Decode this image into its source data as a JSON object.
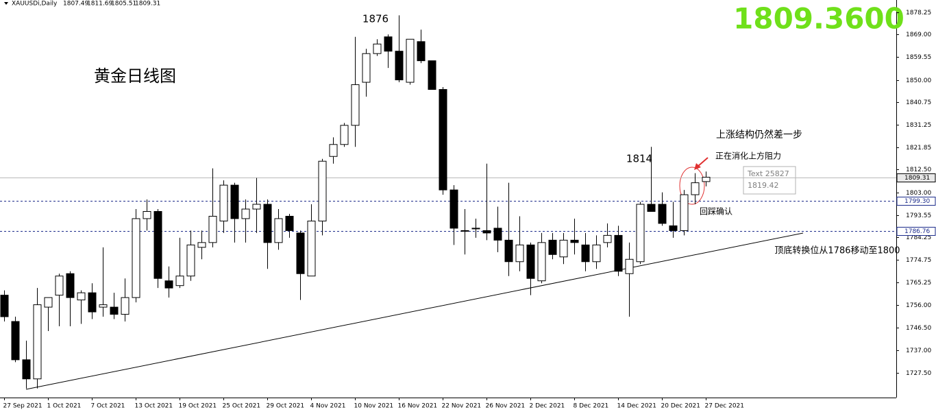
{
  "chart_data": {
    "type": "candlestick",
    "header": {
      "symbol": "XAUUSDi,Daily"
    },
    "price_display": "1809.3600",
    "annotations": [
      "1876",
      "黄金日线图",
      "1814",
      "上涨结构仍然差一步",
      "正在消化上方阻力",
      "回踩确认",
      "顶底转换位从1786移动至1800"
    ],
    "tooltip": [
      "Text 25827",
      "1819.42"
    ],
    "up_color": "#ffffff",
    "down_color": "#000000",
    "categories": [
      "27 Sep 2021",
      null,
      null,
      null,
      "1 Oct 2021",
      null,
      null,
      null,
      "7 Oct 2021",
      null,
      null,
      null,
      "13 Oct 2021",
      null,
      null,
      null,
      "19 Oct 2021",
      null,
      null,
      null,
      "25 Oct 2021",
      null,
      null,
      null,
      "29 Oct 2021",
      null,
      null,
      null,
      "4 Nov 2021",
      null,
      null,
      null,
      "10 Nov 2021",
      null,
      null,
      null,
      "16 Nov 2021",
      null,
      null,
      null,
      "22 Nov 2021",
      null,
      null,
      null,
      "26 Nov 2021",
      null,
      null,
      null,
      "2 Dec 2021",
      null,
      null,
      null,
      "8 Dec 2021",
      null,
      null,
      null,
      "14 Dec 2021",
      null,
      null,
      null,
      "20 Dec 2021",
      null,
      null,
      null,
      "27 Dec 2021"
    ],
    "open": [
      1760,
      1749,
      1733,
      1725,
      1755,
      1760,
      1769,
      1758,
      1761,
      1755,
      1755,
      1752,
      1759,
      1792,
      1795,
      1766,
      1764,
      1768,
      1780,
      1782,
      1791,
      1806,
      1792,
      1796,
      1798,
      1782,
      1793,
      1786,
      1768,
      1791,
      1818,
      1823,
      1831,
      1849,
      1861,
      1868,
      1862,
      1849,
      1866,
      1858,
      1846,
      1804,
      1787,
      1788,
      1787,
      1788,
      1783,
      1774,
      1781,
      1766,
      1783,
      1776,
      1783,
      1781,
      1774,
      1782,
      1785,
      1769,
      1774,
      1798,
      1798,
      1789,
      1787,
      1802,
      1807.49
    ],
    "high": [
      1762,
      1751,
      1741,
      1763,
      1759,
      1769,
      1770,
      1762,
      1765,
      1780,
      1761,
      1767,
      1796,
      1800,
      1796,
      1772,
      1784,
      1787,
      1787,
      1813,
      1808,
      1807,
      1800,
      1809,
      1800,
      1796,
      1794,
      1787,
      1798,
      1817,
      1826,
      1832,
      1868,
      1863,
      1867,
      1869,
      1877,
      1867,
      1871,
      1858,
      1847,
      1806,
      1796,
      1792,
      1815,
      1797,
      1807,
      1793,
      1782,
      1786,
      1786,
      1786,
      1792,
      1786,
      1785,
      1790,
      1789,
      1782,
      1799,
      1822,
      1803,
      1799,
      1804,
      1811,
      1811.69
    ],
    "low": [
      1749,
      1732,
      1721,
      1721,
      1745,
      1747,
      1747,
      1748,
      1750,
      1751,
      1750,
      1749,
      1757,
      1787,
      1763,
      1759,
      1763,
      1766,
      1775,
      1780,
      1786,
      1782,
      1782,
      1786,
      1771,
      1779,
      1784,
      1758,
      1768,
      1785,
      1815,
      1822,
      1822,
      1843,
      1860,
      1855,
      1849,
      1848,
      1857,
      1846,
      1802,
      1781,
      1777,
      1784,
      1783,
      1778,
      1768,
      1770,
      1760,
      1765,
      1775,
      1773,
      1777,
      1770,
      1771,
      1780,
      1768,
      1751,
      1773,
      1795,
      1789,
      1784,
      1785,
      1798,
      1805.51
    ],
    "close": [
      1751,
      1733,
      1725,
      1756,
      1759,
      1768,
      1759,
      1761,
      1753,
      1756,
      1752,
      1759,
      1792,
      1795,
      1767,
      1763,
      1768,
      1781,
      1782,
      1793,
      1806,
      1792,
      1796,
      1798,
      1782,
      1792,
      1787,
      1769,
      1791,
      1816,
      1823,
      1831,
      1848,
      1861,
      1865,
      1862,
      1850,
      1867,
      1858,
      1846,
      1804,
      1788,
      1787,
      1788,
      1786,
      1783,
      1774,
      1781,
      1767,
      1782,
      1777,
      1783,
      1782,
      1774,
      1781,
      1785,
      1770,
      1775,
      1798,
      1795,
      1790,
      1787,
      1802,
      1807,
      1809.31
    ],
    "ylim": [
      1717.2,
      1883.4
    ],
    "yticks": [
      1878.25,
      {
        "value": 1869,
        "label": "1869.00"
      },
      1859.55,
      {
        "value": 1850,
        "label": "1850.00"
      },
      1840.75,
      1831.25,
      1821.85,
      {
        "value": 1812.5,
        "label": "1812.50"
      },
      {
        "value": 1803,
        "label": "1803.00"
      },
      1793.55,
      1784.25,
      1774.75,
      1765.25,
      {
        "value": 1756,
        "label": "1756.00"
      },
      {
        "value": 1746.5,
        "label": "1746.50"
      },
      {
        "value": 1737,
        "label": "1737.00"
      },
      {
        "value": 1727.5,
        "label": "1727.50"
      }
    ],
    "hlines": [
      1809.31,
      {
        "value": 1799.3,
        "label": "1799.30"
      },
      1786.76
    ]
  }
}
